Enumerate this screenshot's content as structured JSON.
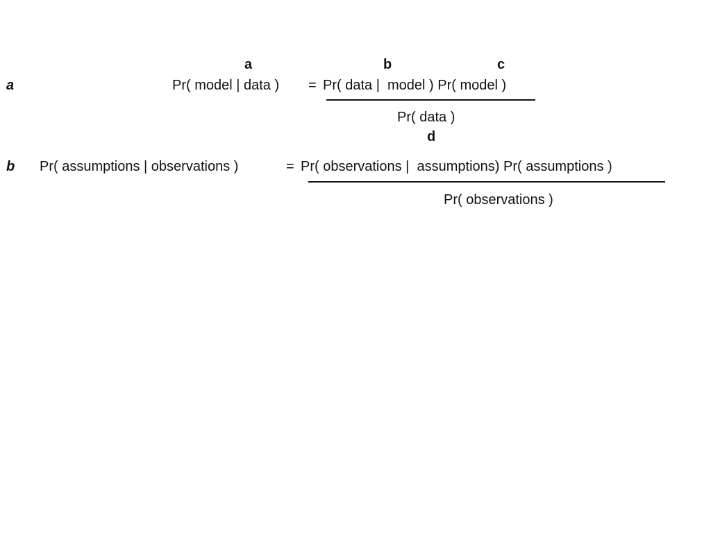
{
  "top_markers": {
    "a": "a",
    "b": "b",
    "c": "c",
    "d": "d"
  },
  "equation_a": {
    "row_label": "a",
    "lhs": "Pr( model | data )",
    "equals": "=",
    "numerator": "Pr( data |  model ) Pr( model )",
    "denominator": "Pr( data )"
  },
  "equation_b": {
    "row_label": "b",
    "lhs": "Pr( assumptions | observations )",
    "equals": "=",
    "numerator": "Pr( observations |  assumptions) Pr( assumptions )",
    "denominator": "Pr( observations )"
  }
}
